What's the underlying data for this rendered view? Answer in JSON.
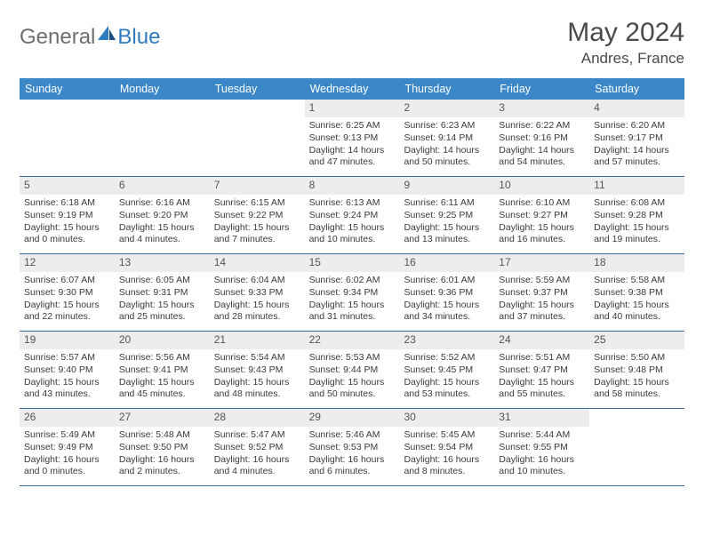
{
  "logo": {
    "general": "General",
    "blue": "Blue"
  },
  "title": "May 2024",
  "location": "Andres, France",
  "weekdays": [
    "Sunday",
    "Monday",
    "Tuesday",
    "Wednesday",
    "Thursday",
    "Friday",
    "Saturday"
  ],
  "colors": {
    "header_bg": "#3b87c8",
    "header_text": "#ffffff",
    "daynum_bg": "#ededed",
    "week_border": "#3b6fa3",
    "logo_gray": "#6e6e6e",
    "logo_blue": "#2f7bbf",
    "text": "#3a3a3a",
    "title_text": "#4a4a4a"
  },
  "weeks": [
    [
      {
        "empty": true
      },
      {
        "empty": true
      },
      {
        "empty": true
      },
      {
        "day": "1",
        "sunrise": "Sunrise: 6:25 AM",
        "sunset": "Sunset: 9:13 PM",
        "daylight1": "Daylight: 14 hours",
        "daylight2": "and 47 minutes."
      },
      {
        "day": "2",
        "sunrise": "Sunrise: 6:23 AM",
        "sunset": "Sunset: 9:14 PM",
        "daylight1": "Daylight: 14 hours",
        "daylight2": "and 50 minutes."
      },
      {
        "day": "3",
        "sunrise": "Sunrise: 6:22 AM",
        "sunset": "Sunset: 9:16 PM",
        "daylight1": "Daylight: 14 hours",
        "daylight2": "and 54 minutes."
      },
      {
        "day": "4",
        "sunrise": "Sunrise: 6:20 AM",
        "sunset": "Sunset: 9:17 PM",
        "daylight1": "Daylight: 14 hours",
        "daylight2": "and 57 minutes."
      }
    ],
    [
      {
        "day": "5",
        "sunrise": "Sunrise: 6:18 AM",
        "sunset": "Sunset: 9:19 PM",
        "daylight1": "Daylight: 15 hours",
        "daylight2": "and 0 minutes."
      },
      {
        "day": "6",
        "sunrise": "Sunrise: 6:16 AM",
        "sunset": "Sunset: 9:20 PM",
        "daylight1": "Daylight: 15 hours",
        "daylight2": "and 4 minutes."
      },
      {
        "day": "7",
        "sunrise": "Sunrise: 6:15 AM",
        "sunset": "Sunset: 9:22 PM",
        "daylight1": "Daylight: 15 hours",
        "daylight2": "and 7 minutes."
      },
      {
        "day": "8",
        "sunrise": "Sunrise: 6:13 AM",
        "sunset": "Sunset: 9:24 PM",
        "daylight1": "Daylight: 15 hours",
        "daylight2": "and 10 minutes."
      },
      {
        "day": "9",
        "sunrise": "Sunrise: 6:11 AM",
        "sunset": "Sunset: 9:25 PM",
        "daylight1": "Daylight: 15 hours",
        "daylight2": "and 13 minutes."
      },
      {
        "day": "10",
        "sunrise": "Sunrise: 6:10 AM",
        "sunset": "Sunset: 9:27 PM",
        "daylight1": "Daylight: 15 hours",
        "daylight2": "and 16 minutes."
      },
      {
        "day": "11",
        "sunrise": "Sunrise: 6:08 AM",
        "sunset": "Sunset: 9:28 PM",
        "daylight1": "Daylight: 15 hours",
        "daylight2": "and 19 minutes."
      }
    ],
    [
      {
        "day": "12",
        "sunrise": "Sunrise: 6:07 AM",
        "sunset": "Sunset: 9:30 PM",
        "daylight1": "Daylight: 15 hours",
        "daylight2": "and 22 minutes."
      },
      {
        "day": "13",
        "sunrise": "Sunrise: 6:05 AM",
        "sunset": "Sunset: 9:31 PM",
        "daylight1": "Daylight: 15 hours",
        "daylight2": "and 25 minutes."
      },
      {
        "day": "14",
        "sunrise": "Sunrise: 6:04 AM",
        "sunset": "Sunset: 9:33 PM",
        "daylight1": "Daylight: 15 hours",
        "daylight2": "and 28 minutes."
      },
      {
        "day": "15",
        "sunrise": "Sunrise: 6:02 AM",
        "sunset": "Sunset: 9:34 PM",
        "daylight1": "Daylight: 15 hours",
        "daylight2": "and 31 minutes."
      },
      {
        "day": "16",
        "sunrise": "Sunrise: 6:01 AM",
        "sunset": "Sunset: 9:36 PM",
        "daylight1": "Daylight: 15 hours",
        "daylight2": "and 34 minutes."
      },
      {
        "day": "17",
        "sunrise": "Sunrise: 5:59 AM",
        "sunset": "Sunset: 9:37 PM",
        "daylight1": "Daylight: 15 hours",
        "daylight2": "and 37 minutes."
      },
      {
        "day": "18",
        "sunrise": "Sunrise: 5:58 AM",
        "sunset": "Sunset: 9:38 PM",
        "daylight1": "Daylight: 15 hours",
        "daylight2": "and 40 minutes."
      }
    ],
    [
      {
        "day": "19",
        "sunrise": "Sunrise: 5:57 AM",
        "sunset": "Sunset: 9:40 PM",
        "daylight1": "Daylight: 15 hours",
        "daylight2": "and 43 minutes."
      },
      {
        "day": "20",
        "sunrise": "Sunrise: 5:56 AM",
        "sunset": "Sunset: 9:41 PM",
        "daylight1": "Daylight: 15 hours",
        "daylight2": "and 45 minutes."
      },
      {
        "day": "21",
        "sunrise": "Sunrise: 5:54 AM",
        "sunset": "Sunset: 9:43 PM",
        "daylight1": "Daylight: 15 hours",
        "daylight2": "and 48 minutes."
      },
      {
        "day": "22",
        "sunrise": "Sunrise: 5:53 AM",
        "sunset": "Sunset: 9:44 PM",
        "daylight1": "Daylight: 15 hours",
        "daylight2": "and 50 minutes."
      },
      {
        "day": "23",
        "sunrise": "Sunrise: 5:52 AM",
        "sunset": "Sunset: 9:45 PM",
        "daylight1": "Daylight: 15 hours",
        "daylight2": "and 53 minutes."
      },
      {
        "day": "24",
        "sunrise": "Sunrise: 5:51 AM",
        "sunset": "Sunset: 9:47 PM",
        "daylight1": "Daylight: 15 hours",
        "daylight2": "and 55 minutes."
      },
      {
        "day": "25",
        "sunrise": "Sunrise: 5:50 AM",
        "sunset": "Sunset: 9:48 PM",
        "daylight1": "Daylight: 15 hours",
        "daylight2": "and 58 minutes."
      }
    ],
    [
      {
        "day": "26",
        "sunrise": "Sunrise: 5:49 AM",
        "sunset": "Sunset: 9:49 PM",
        "daylight1": "Daylight: 16 hours",
        "daylight2": "and 0 minutes."
      },
      {
        "day": "27",
        "sunrise": "Sunrise: 5:48 AM",
        "sunset": "Sunset: 9:50 PM",
        "daylight1": "Daylight: 16 hours",
        "daylight2": "and 2 minutes."
      },
      {
        "day": "28",
        "sunrise": "Sunrise: 5:47 AM",
        "sunset": "Sunset: 9:52 PM",
        "daylight1": "Daylight: 16 hours",
        "daylight2": "and 4 minutes."
      },
      {
        "day": "29",
        "sunrise": "Sunrise: 5:46 AM",
        "sunset": "Sunset: 9:53 PM",
        "daylight1": "Daylight: 16 hours",
        "daylight2": "and 6 minutes."
      },
      {
        "day": "30",
        "sunrise": "Sunrise: 5:45 AM",
        "sunset": "Sunset: 9:54 PM",
        "daylight1": "Daylight: 16 hours",
        "daylight2": "and 8 minutes."
      },
      {
        "day": "31",
        "sunrise": "Sunrise: 5:44 AM",
        "sunset": "Sunset: 9:55 PM",
        "daylight1": "Daylight: 16 hours",
        "daylight2": "and 10 minutes."
      },
      {
        "empty": true
      }
    ]
  ]
}
